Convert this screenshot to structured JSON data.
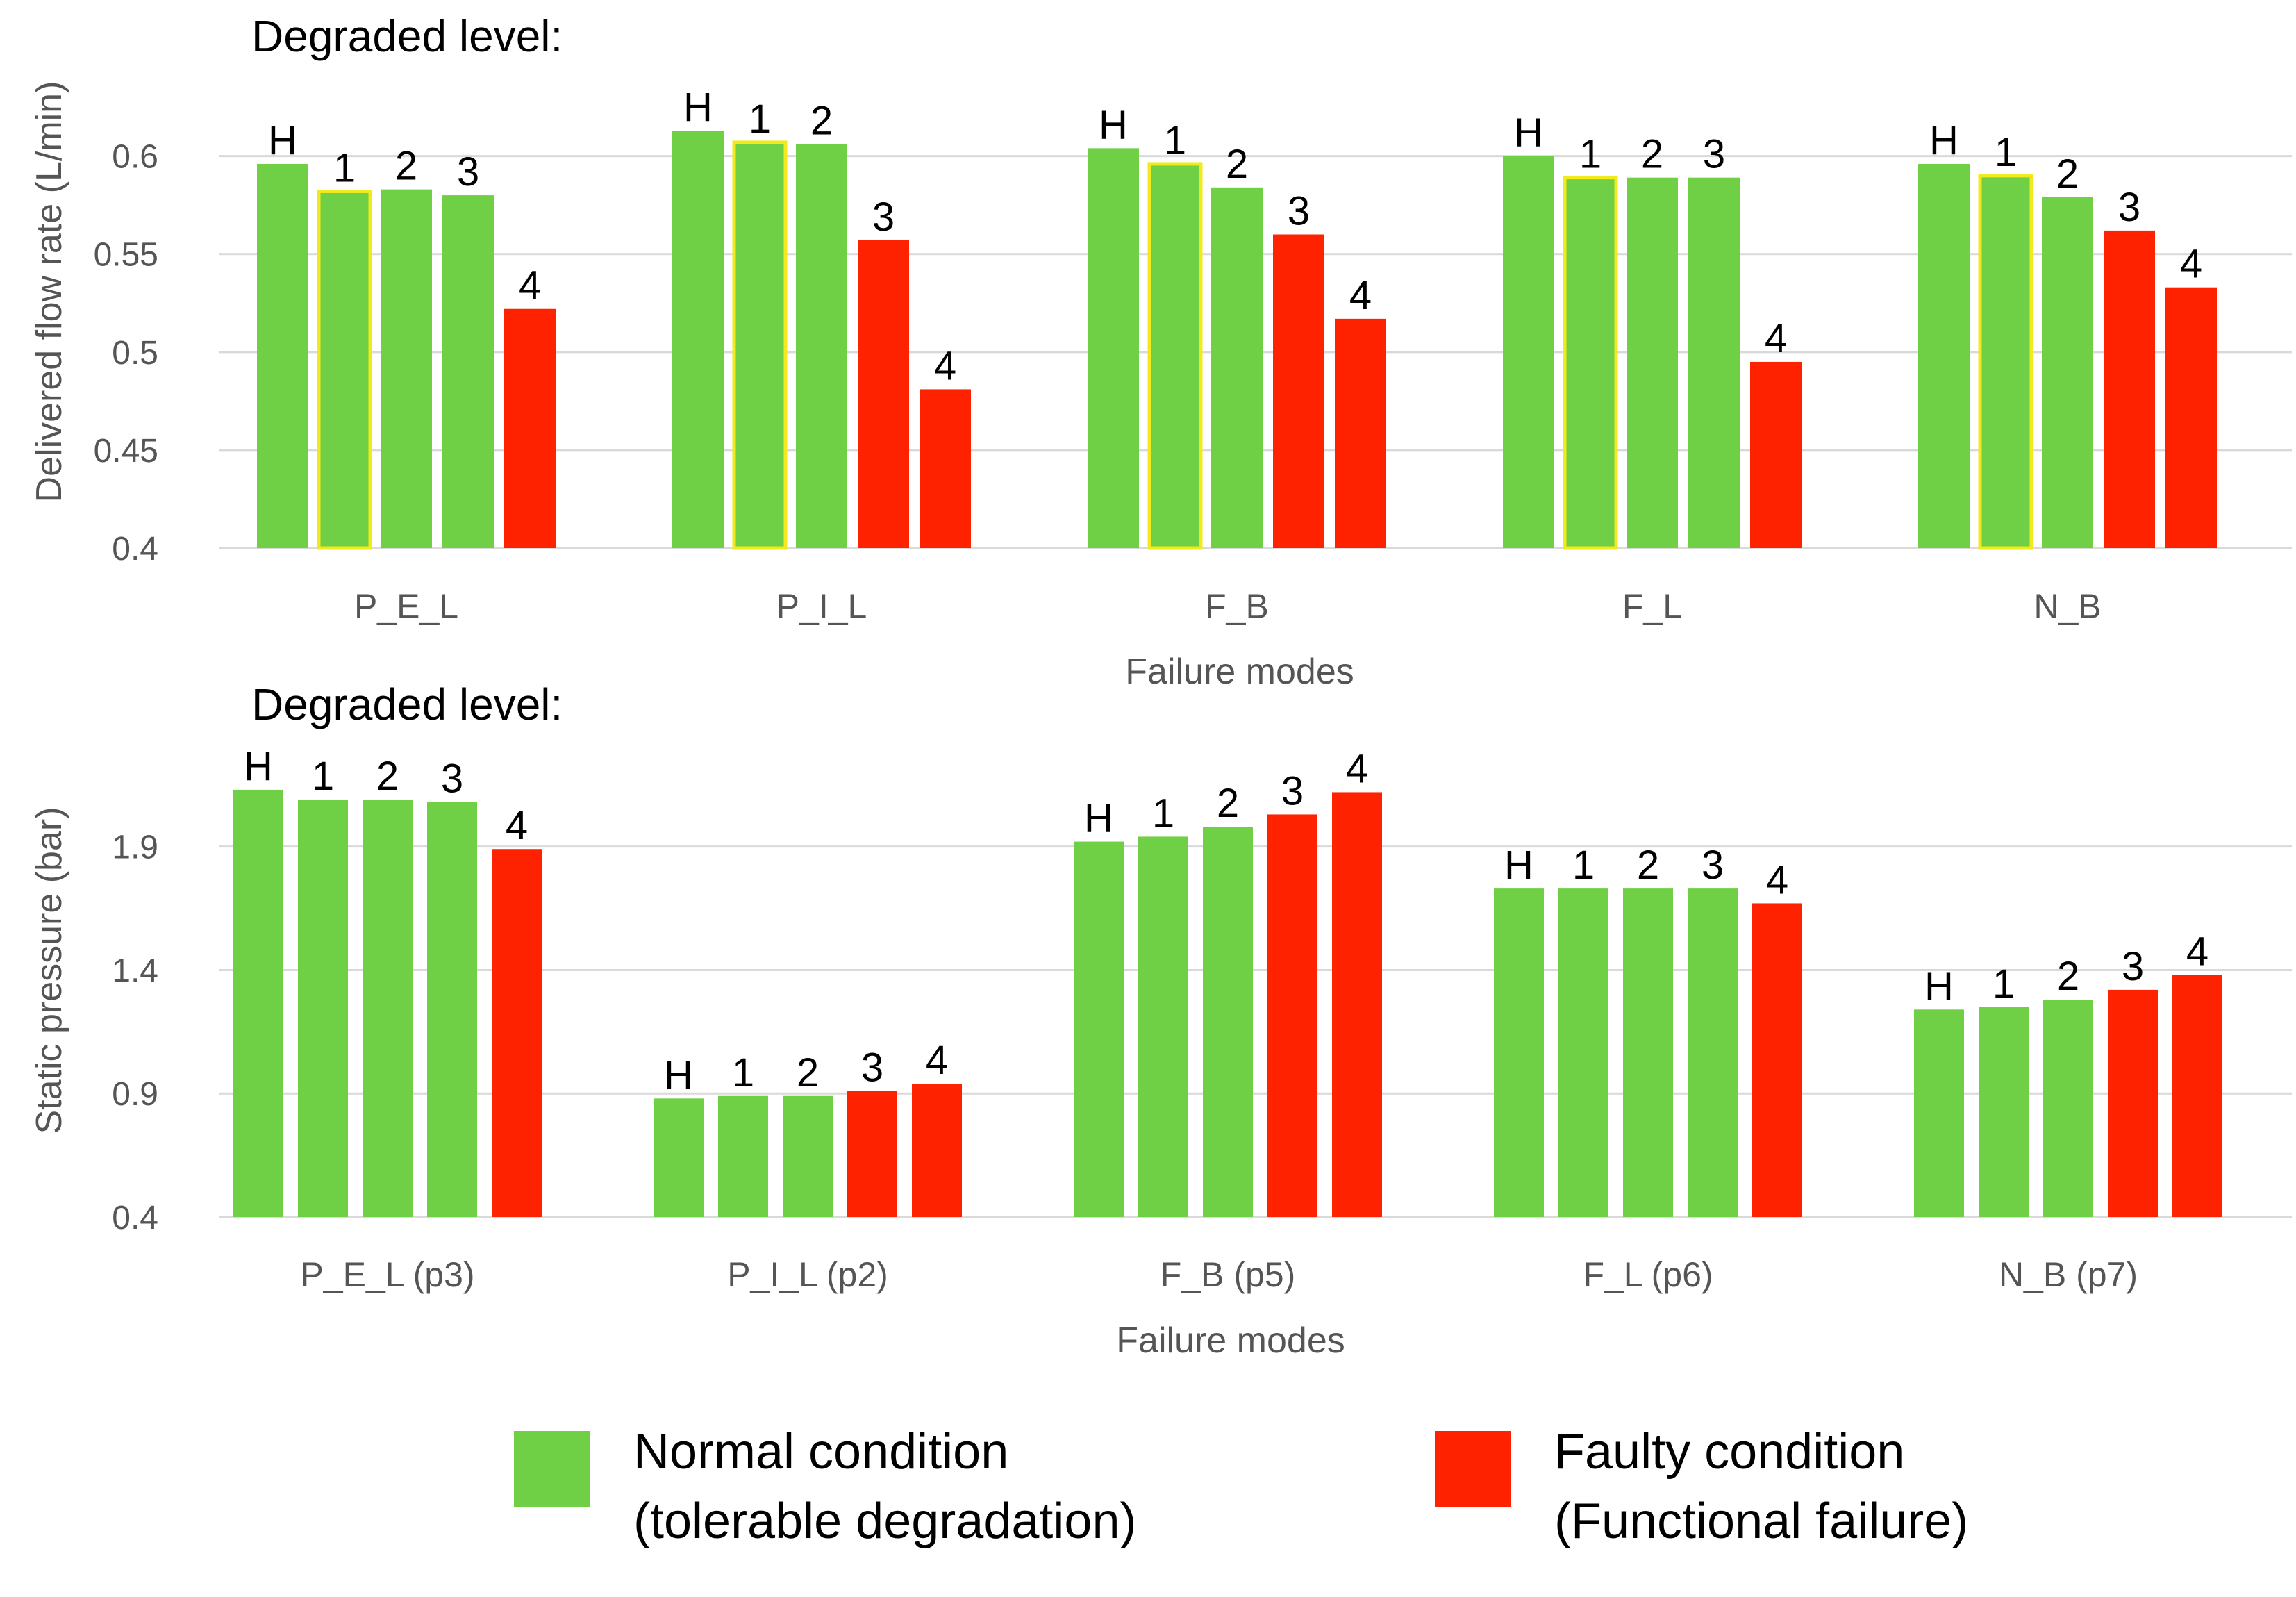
{
  "colors": {
    "normal": "#6fcf45",
    "faulty": "#ff2200",
    "highlight": "#f2ea1c"
  },
  "chart_data": [
    {
      "type": "bar",
      "header": "Degraded level:",
      "ylabel": "Delivered flow rate (L/min)",
      "xlabel": "Failure modes",
      "ylim": [
        0.4,
        0.63
      ],
      "yticks": [
        0.4,
        0.45,
        0.5,
        0.55,
        0.6
      ],
      "ytick_labels": [
        "0.4",
        "0.45",
        "0.5",
        "0.55",
        "0.6"
      ],
      "grid": true,
      "categories": [
        "P_E_L",
        "P_I_L",
        "F_B",
        "F_L",
        "N_B"
      ],
      "levels": [
        "H",
        "1",
        "2",
        "3",
        "4"
      ],
      "values": [
        [
          0.596,
          0.582,
          0.583,
          0.58,
          0.522
        ],
        [
          0.613,
          0.607,
          0.606,
          0.557,
          0.481
        ],
        [
          0.604,
          0.596,
          0.584,
          0.56,
          0.517
        ],
        [
          0.6,
          0.589,
          0.589,
          0.589,
          0.495
        ],
        [
          0.596,
          0.59,
          0.579,
          0.562,
          0.533
        ]
      ],
      "status": [
        [
          "normal",
          "normal",
          "normal",
          "normal",
          "faulty"
        ],
        [
          "normal",
          "normal",
          "normal",
          "faulty",
          "faulty"
        ],
        [
          "normal",
          "normal",
          "normal",
          "faulty",
          "faulty"
        ],
        [
          "normal",
          "normal",
          "normal",
          "normal",
          "faulty"
        ],
        [
          "normal",
          "normal",
          "normal",
          "faulty",
          "faulty"
        ]
      ],
      "highlighted": [
        [
          false,
          true,
          false,
          false,
          false
        ],
        [
          false,
          true,
          false,
          false,
          false
        ],
        [
          false,
          true,
          false,
          false,
          false
        ],
        [
          false,
          true,
          false,
          false,
          false
        ],
        [
          false,
          true,
          false,
          false,
          false
        ]
      ]
    },
    {
      "type": "bar",
      "header": "Degraded level:",
      "ylabel": "Static pressure (bar)",
      "xlabel": "Failure modes",
      "ylim": [
        0.4,
        2.2
      ],
      "yticks": [
        0.4,
        0.9,
        1.4,
        1.9
      ],
      "ytick_labels": [
        "0.4",
        "0.9",
        "1.4",
        "1.9"
      ],
      "grid": true,
      "categories": [
        "P_E_L (p3)",
        "P_I_L (p2)",
        "F_B (p5)",
        "F_L (p6)",
        "N_B (p7)"
      ],
      "levels": [
        "H",
        "1",
        "2",
        "3",
        "4"
      ],
      "values": [
        [
          2.13,
          2.09,
          2.09,
          2.08,
          1.89
        ],
        [
          0.88,
          0.89,
          0.89,
          0.91,
          0.94
        ],
        [
          1.92,
          1.94,
          1.98,
          2.03,
          2.12
        ],
        [
          1.73,
          1.73,
          1.73,
          1.73,
          1.67
        ],
        [
          1.24,
          1.25,
          1.28,
          1.32,
          1.38
        ]
      ],
      "status": [
        [
          "normal",
          "normal",
          "normal",
          "normal",
          "faulty"
        ],
        [
          "normal",
          "normal",
          "normal",
          "faulty",
          "faulty"
        ],
        [
          "normal",
          "normal",
          "normal",
          "faulty",
          "faulty"
        ],
        [
          "normal",
          "normal",
          "normal",
          "normal",
          "faulty"
        ],
        [
          "normal",
          "normal",
          "normal",
          "faulty",
          "faulty"
        ]
      ],
      "highlighted": [
        [
          false,
          false,
          false,
          false,
          false
        ],
        [
          false,
          false,
          false,
          false,
          false
        ],
        [
          false,
          false,
          false,
          false,
          false
        ],
        [
          false,
          false,
          false,
          false,
          false
        ],
        [
          false,
          false,
          false,
          false,
          false
        ]
      ]
    }
  ],
  "legend": {
    "normal": {
      "line1": "Normal condition",
      "line2": "(tolerable degradation)"
    },
    "faulty": {
      "line1": "Faulty condition",
      "line2": "(Functional failure)"
    }
  }
}
